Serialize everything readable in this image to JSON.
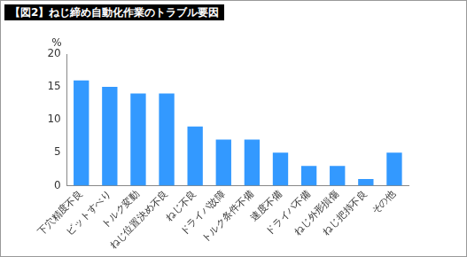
{
  "chart_data": {
    "type": "bar",
    "title": "【図2】ねじ締め自動化作業のトラブル要因",
    "y_label": "%",
    "categories": [
      "下穴精度不良",
      "ビットすべり",
      "トルク変動",
      "ねじ位置決め不良",
      "ねじ不良",
      "ドライバ故障",
      "トルク条件不備",
      "速度不備",
      "ドライバ不備",
      "ねじ外形損傷",
      "ねじ把持不良",
      "その他"
    ],
    "values": [
      16,
      15,
      14,
      14,
      9,
      7,
      7,
      5,
      3,
      3,
      1,
      5
    ],
    "color": "#3399ff",
    "ylim": [
      0,
      20
    ],
    "yticks": [
      0,
      5,
      10,
      15,
      20
    ],
    "grid": false
  }
}
